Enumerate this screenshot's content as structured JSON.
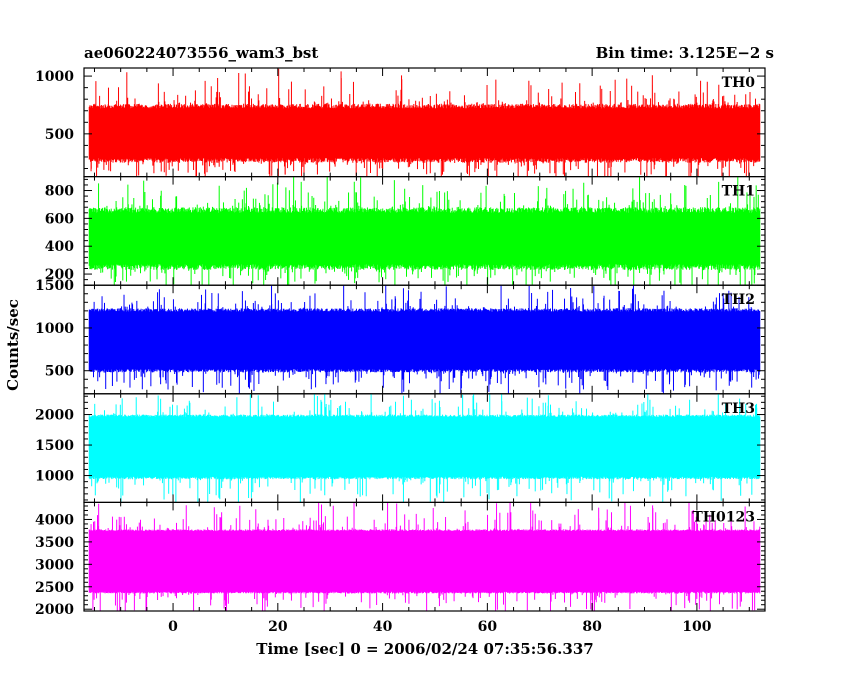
{
  "header": {
    "title": "ae060224073556_wam3_bst",
    "bin_time": "Bin time: 3.125E−2 s"
  },
  "chart_data": {
    "type": "line",
    "shared_x": true,
    "xlabel": "Time [sec] 0 = 2006/02/24 07:35:56.337",
    "ylabel": "Counts/sec",
    "xlim": [
      -17,
      113
    ],
    "data_x_range": [
      -16,
      112
    ],
    "bin_time": 0.03125,
    "x_ticks": [
      0,
      20,
      40,
      60,
      80,
      100
    ],
    "x_tick_labels": [
      "0",
      "20",
      "40",
      "60",
      "80",
      "100"
    ],
    "grid": false,
    "panels": [
      {
        "name": "TH0",
        "color": "#ff0000",
        "ylim": [
          130,
          1070
        ],
        "y_ticks": [
          500,
          1000
        ],
        "y_tick_labels": [
          "500",
          "1000"
        ],
        "mean": 505,
        "band_low": 250,
        "band_high": 760,
        "min": 130,
        "max": 1070
      },
      {
        "name": "TH1",
        "color": "#00ff00",
        "ylim": [
          120,
          900
        ],
        "y_ticks": [
          200,
          400,
          600,
          800
        ],
        "y_tick_labels": [
          "200",
          "400",
          "600",
          "800"
        ],
        "mean": 450,
        "band_low": 230,
        "band_high": 680,
        "min": 120,
        "max": 900
      },
      {
        "name": "TH2",
        "color": "#0000ff",
        "ylim": [
          230,
          1500
        ],
        "y_ticks": [
          500,
          1000,
          1500
        ],
        "y_tick_labels": [
          "500",
          "1000",
          "1500"
        ],
        "mean": 850,
        "band_low": 480,
        "band_high": 1230,
        "min": 230,
        "max": 1500
      },
      {
        "name": "TH3",
        "color": "#00ffff",
        "ylim": [
          560,
          2340
        ],
        "y_ticks": [
          1000,
          1500,
          2000
        ],
        "y_tick_labels": [
          "1000",
          "1500",
          "2000"
        ],
        "mean": 1460,
        "band_low": 940,
        "band_high": 2000,
        "min": 560,
        "max": 2340
      },
      {
        "name": "TH0123",
        "color": "#ff00ff",
        "ylim": [
          1960,
          4380
        ],
        "y_ticks": [
          2000,
          2500,
          3000,
          3500,
          4000
        ],
        "y_tick_labels": [
          "2000",
          "2500",
          "3000",
          "3500",
          "4000"
        ],
        "mean": 3050,
        "band_low": 2350,
        "band_high": 3780,
        "min": 1960,
        "max": 4380
      }
    ]
  }
}
